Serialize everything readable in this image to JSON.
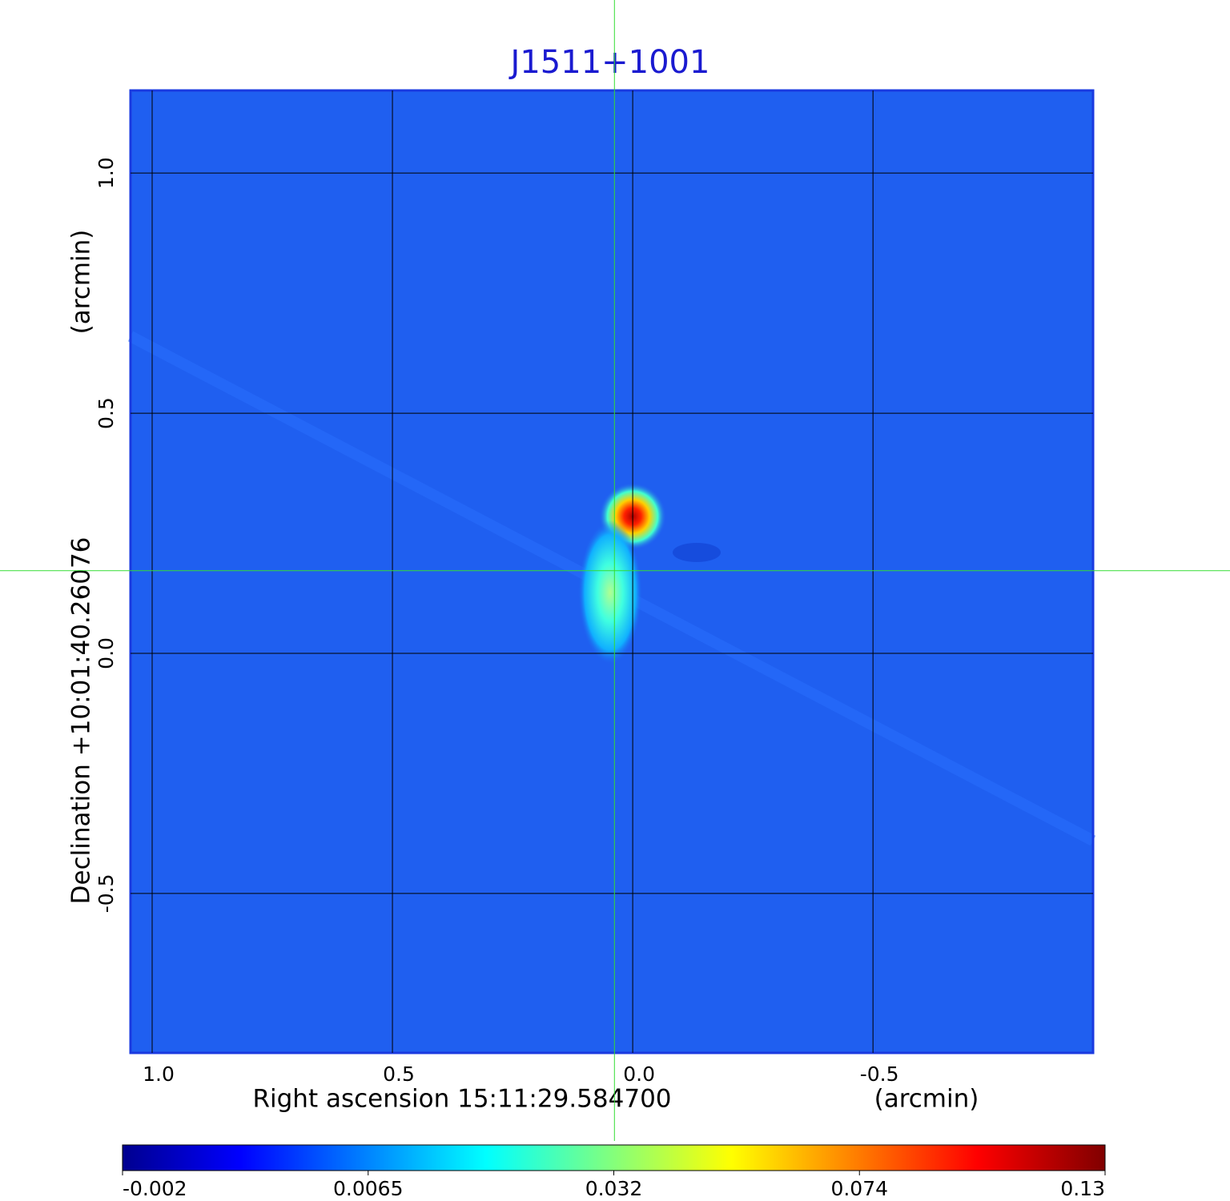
{
  "chart_data": {
    "type": "image",
    "title": "J1511+1001",
    "x_label": "Right ascension  15:11:29.584700",
    "x_unit": "(arcmin)",
    "y_label": "Declination  +10:01:40.26076",
    "y_unit": "(arcmin)",
    "xlim": [
      1.045,
      -0.958
    ],
    "ylim": [
      -0.832,
      1.172
    ],
    "xticks": [
      {
        "value": 1.0,
        "label": "1.0"
      },
      {
        "value": 0.5,
        "label": "0.5"
      },
      {
        "value": 0,
        "label": "0.0"
      },
      {
        "value": -0.5,
        "label": "-0.5"
      }
    ],
    "yticks": [
      {
        "value": -0.5,
        "label": "-0.5"
      },
      {
        "value": 0,
        "label": "0.0"
      },
      {
        "value": 0.5,
        "label": "0.5"
      },
      {
        "value": 1.0,
        "label": "1.0"
      }
    ],
    "grid": true,
    "crosshair": {
      "x": 0.038,
      "y": 0.172,
      "color": "#33dd33"
    },
    "colorbar": {
      "ticks": [
        -0.002,
        0.0065,
        0.032,
        0.074,
        0.13
      ]
    }
  }
}
